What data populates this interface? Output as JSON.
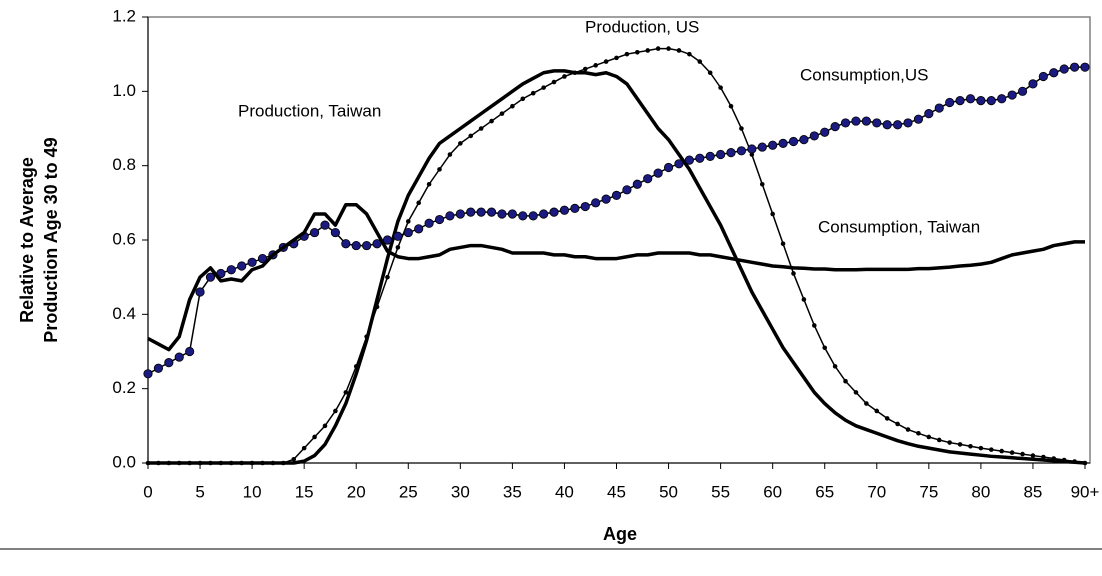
{
  "chart_data": {
    "type": "line",
    "xlabel": "Age",
    "ylabel": [
      "Relative to Average",
      "Production Age 30 to 49"
    ],
    "xlim": [
      0,
      90
    ],
    "ylim": [
      0,
      1.2
    ],
    "xticks": [
      0,
      5,
      10,
      15,
      20,
      25,
      30,
      35,
      40,
      45,
      50,
      55,
      60,
      65,
      70,
      75,
      80,
      85,
      {
        "value": 90,
        "label": "90+"
      }
    ],
    "yticks": [
      {
        "value": 0,
        "label": "0.0"
      },
      0.2,
      0.4,
      0.6,
      0.8,
      {
        "value": 1,
        "label": "1.0"
      },
      1.2
    ],
    "grid": false,
    "x": [
      0,
      1,
      2,
      3,
      4,
      5,
      6,
      7,
      8,
      9,
      10,
      11,
      12,
      13,
      14,
      15,
      16,
      17,
      18,
      19,
      20,
      21,
      22,
      23,
      24,
      25,
      26,
      27,
      28,
      29,
      30,
      31,
      32,
      33,
      34,
      35,
      36,
      37,
      38,
      39,
      40,
      41,
      42,
      43,
      44,
      45,
      46,
      47,
      48,
      49,
      50,
      51,
      52,
      53,
      54,
      55,
      56,
      57,
      58,
      59,
      60,
      61,
      62,
      63,
      64,
      65,
      66,
      67,
      68,
      69,
      70,
      71,
      72,
      73,
      74,
      75,
      76,
      77,
      78,
      79,
      80,
      81,
      82,
      83,
      84,
      85,
      86,
      87,
      88,
      89,
      90
    ],
    "series": [
      {
        "name": "Production, Taiwan",
        "color": "#000000",
        "width": 3.5,
        "marker": "none",
        "values": [
          0,
          0,
          0,
          0,
          0,
          0,
          0,
          0,
          0,
          0,
          0,
          0,
          0,
          0,
          0,
          0.005,
          0.02,
          0.05,
          0.1,
          0.16,
          0.24,
          0.33,
          0.44,
          0.55,
          0.65,
          0.72,
          0.77,
          0.82,
          0.86,
          0.88,
          0.9,
          0.92,
          0.94,
          0.96,
          0.98,
          1.0,
          1.02,
          1.035,
          1.05,
          1.055,
          1.055,
          1.05,
          1.05,
          1.045,
          1.05,
          1.04,
          1.02,
          0.98,
          0.94,
          0.9,
          0.87,
          0.83,
          0.79,
          0.74,
          0.69,
          0.64,
          0.58,
          0.52,
          0.46,
          0.41,
          0.36,
          0.31,
          0.27,
          0.23,
          0.19,
          0.16,
          0.135,
          0.115,
          0.1,
          0.09,
          0.08,
          0.07,
          0.06,
          0.052,
          0.045,
          0.04,
          0.035,
          0.03,
          0.027,
          0.024,
          0.021,
          0.018,
          0.016,
          0.014,
          0.012,
          0.01,
          0.008,
          0.006,
          0.004,
          0.002,
          0
        ]
      },
      {
        "name": "Production, US",
        "color": "#000000",
        "width": 1.5,
        "marker": "dot",
        "marker_color": "#000000",
        "values": [
          0,
          0,
          0,
          0,
          0,
          0,
          0,
          0,
          0,
          0,
          0,
          0,
          0,
          0,
          0.01,
          0.04,
          0.07,
          0.1,
          0.14,
          0.19,
          0.26,
          0.34,
          0.42,
          0.5,
          0.58,
          0.65,
          0.7,
          0.75,
          0.79,
          0.83,
          0.86,
          0.88,
          0.9,
          0.92,
          0.94,
          0.96,
          0.98,
          0.995,
          1.01,
          1.025,
          1.04,
          1.05,
          1.06,
          1.07,
          1.08,
          1.09,
          1.1,
          1.105,
          1.11,
          1.115,
          1.115,
          1.11,
          1.1,
          1.08,
          1.05,
          1.01,
          0.96,
          0.9,
          0.83,
          0.75,
          0.67,
          0.59,
          0.51,
          0.44,
          0.37,
          0.31,
          0.26,
          0.22,
          0.19,
          0.16,
          0.14,
          0.12,
          0.105,
          0.09,
          0.08,
          0.07,
          0.062,
          0.055,
          0.05,
          0.045,
          0.04,
          0.036,
          0.032,
          0.028,
          0.024,
          0.02,
          0.016,
          0.012,
          0.008,
          0.004,
          0
        ]
      },
      {
        "name": "Consumption,US",
        "color": "#000000",
        "width": 1.5,
        "marker": "circle",
        "marker_color": "#1a1a80",
        "values": [
          0.24,
          0.255,
          0.27,
          0.285,
          0.3,
          0.46,
          0.5,
          0.51,
          0.52,
          0.53,
          0.54,
          0.55,
          0.56,
          0.58,
          0.59,
          0.61,
          0.62,
          0.64,
          0.62,
          0.59,
          0.585,
          0.585,
          0.59,
          0.6,
          0.61,
          0.62,
          0.63,
          0.645,
          0.655,
          0.665,
          0.67,
          0.675,
          0.675,
          0.675,
          0.67,
          0.67,
          0.665,
          0.665,
          0.67,
          0.675,
          0.68,
          0.685,
          0.69,
          0.7,
          0.71,
          0.72,
          0.735,
          0.75,
          0.765,
          0.78,
          0.795,
          0.805,
          0.815,
          0.82,
          0.825,
          0.83,
          0.835,
          0.84,
          0.845,
          0.85,
          0.855,
          0.86,
          0.865,
          0.87,
          0.88,
          0.89,
          0.905,
          0.915,
          0.92,
          0.92,
          0.915,
          0.91,
          0.91,
          0.915,
          0.925,
          0.94,
          0.955,
          0.97,
          0.975,
          0.98,
          0.975,
          0.975,
          0.98,
          0.99,
          1.0,
          1.02,
          1.04,
          1.05,
          1.06,
          1.065,
          1.065
        ]
      },
      {
        "name": "Consumption, Taiwan",
        "color": "#000000",
        "width": 3.5,
        "marker": "none",
        "values": [
          0.335,
          0.32,
          0.305,
          0.34,
          0.44,
          0.5,
          0.525,
          0.49,
          0.495,
          0.49,
          0.52,
          0.53,
          0.56,
          0.58,
          0.6,
          0.62,
          0.67,
          0.67,
          0.64,
          0.695,
          0.695,
          0.67,
          0.62,
          0.57,
          0.555,
          0.55,
          0.55,
          0.555,
          0.56,
          0.575,
          0.58,
          0.585,
          0.585,
          0.58,
          0.575,
          0.565,
          0.565,
          0.565,
          0.565,
          0.56,
          0.56,
          0.555,
          0.555,
          0.55,
          0.55,
          0.55,
          0.555,
          0.56,
          0.56,
          0.565,
          0.565,
          0.565,
          0.565,
          0.56,
          0.56,
          0.555,
          0.55,
          0.545,
          0.54,
          0.535,
          0.53,
          0.528,
          0.525,
          0.524,
          0.522,
          0.522,
          0.52,
          0.52,
          0.52,
          0.521,
          0.521,
          0.521,
          0.521,
          0.521,
          0.523,
          0.523,
          0.525,
          0.527,
          0.53,
          0.532,
          0.535,
          0.54,
          0.55,
          0.56,
          0.565,
          0.57,
          0.575,
          0.585,
          0.59,
          0.595,
          0.595
        ]
      }
    ]
  }
}
